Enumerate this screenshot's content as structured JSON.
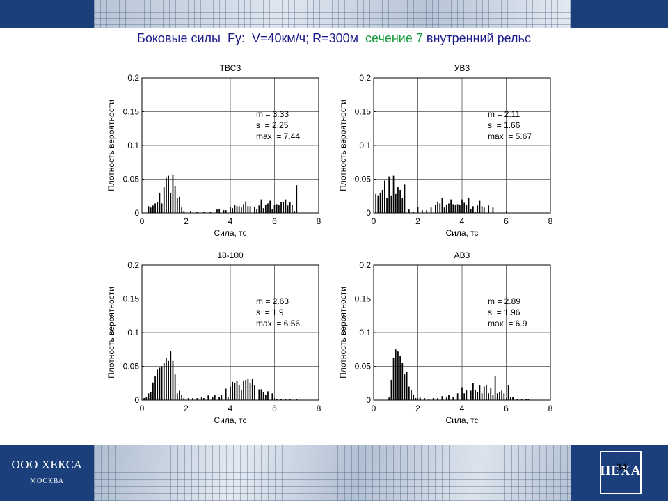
{
  "header": {
    "title_part1": "Боковые силы  Fy:  V=40км/ч; R=300м  ",
    "title_part2": "сечение 7",
    "title_part3": " внутренний рельс",
    "color_dark": "#1b3f7a",
    "color_title": "#1c1c8c",
    "color_green": "#159a3a"
  },
  "footer": {
    "company": "ООО ХЕКСА",
    "city": "МОСКВА",
    "logo_text": "HEXA",
    "page_number": "34"
  },
  "chart_data": [
    {
      "type": "bar",
      "title": "ТВСЗ",
      "xlabel": "Сила, тс",
      "ylabel": "Плотность вероятности",
      "xlim": [
        0,
        8
      ],
      "ylim": [
        0,
        0.2
      ],
      "xticks": [
        0,
        2,
        4,
        6,
        8
      ],
      "yticks": [
        0,
        0.05,
        0.1,
        0.15,
        0.2
      ],
      "ytick_labels": [
        "0",
        "0.05",
        "0.1",
        "0.15",
        "0.2"
      ],
      "grid": true,
      "stats": [
        "m = 3.33",
        "s  = 2.25",
        "max  = 7.44"
      ],
      "x": [
        0.3,
        0.4,
        0.5,
        0.6,
        0.7,
        0.8,
        0.9,
        1.0,
        1.1,
        1.2,
        1.3,
        1.4,
        1.5,
        1.6,
        1.7,
        1.8,
        1.9,
        2.2,
        2.5,
        2.8,
        3.1,
        3.4,
        3.5,
        3.7,
        3.8,
        4.0,
        4.1,
        4.2,
        4.3,
        4.4,
        4.5,
        4.6,
        4.7,
        4.8,
        4.9,
        5.1,
        5.2,
        5.3,
        5.4,
        5.5,
        5.6,
        5.7,
        5.8,
        5.9,
        6.0,
        6.1,
        6.2,
        6.3,
        6.4,
        6.5,
        6.6,
        6.7,
        6.8,
        6.9,
        7.0
      ],
      "values": [
        0.01,
        0.008,
        0.011,
        0.014,
        0.016,
        0.03,
        0.014,
        0.038,
        0.052,
        0.055,
        0.03,
        0.057,
        0.04,
        0.022,
        0.024,
        0.008,
        0.003,
        0.003,
        0.002,
        0.002,
        0.002,
        0.005,
        0.006,
        0.004,
        0.004,
        0.009,
        0.007,
        0.012,
        0.01,
        0.01,
        0.008,
        0.013,
        0.017,
        0.01,
        0.01,
        0.009,
        0.006,
        0.011,
        0.02,
        0.007,
        0.012,
        0.014,
        0.018,
        0.006,
        0.012,
        0.013,
        0.012,
        0.016,
        0.016,
        0.02,
        0.011,
        0.016,
        0.012,
        0.003,
        0.041
      ]
    },
    {
      "type": "bar",
      "title": "УВЗ",
      "xlabel": "Сила, тс",
      "ylabel": "Плотность вероятности",
      "xlim": [
        0,
        8
      ],
      "ylim": [
        0,
        0.2
      ],
      "xticks": [
        0,
        2,
        4,
        6,
        8
      ],
      "yticks": [
        0,
        0.05,
        0.1,
        0.15,
        0.2
      ],
      "ytick_labels": [
        "0",
        "0.05",
        "0.1",
        "0.15",
        "0.2"
      ],
      "grid": true,
      "stats": [
        "m = 2.11",
        "s  = 1.66",
        "max  = 5.67"
      ],
      "x": [
        0.1,
        0.2,
        0.3,
        0.4,
        0.5,
        0.6,
        0.7,
        0.8,
        0.9,
        1.0,
        1.1,
        1.2,
        1.3,
        1.4,
        1.6,
        1.8,
        2.0,
        2.2,
        2.4,
        2.6,
        2.8,
        2.9,
        3.0,
        3.1,
        3.2,
        3.3,
        3.4,
        3.5,
        3.6,
        3.7,
        3.8,
        3.9,
        4.0,
        4.1,
        4.2,
        4.3,
        4.4,
        4.5,
        4.6,
        4.7,
        4.8,
        4.9,
        5.0,
        5.2,
        5.4
      ],
      "values": [
        0.028,
        0.026,
        0.03,
        0.034,
        0.048,
        0.022,
        0.054,
        0.026,
        0.055,
        0.028,
        0.038,
        0.034,
        0.022,
        0.042,
        0.005,
        0.002,
        0.009,
        0.004,
        0.004,
        0.008,
        0.012,
        0.016,
        0.014,
        0.022,
        0.008,
        0.012,
        0.014,
        0.02,
        0.013,
        0.012,
        0.013,
        0.012,
        0.02,
        0.015,
        0.012,
        0.022,
        0.006,
        0.01,
        0.002,
        0.011,
        0.018,
        0.01,
        0.008,
        0.011,
        0.008
      ]
    },
    {
      "type": "bar",
      "title": "18-100",
      "xlabel": "Сила, тс",
      "ylabel": "Плотность вероятности",
      "xlim": [
        0,
        8
      ],
      "ylim": [
        0,
        0.2
      ],
      "xticks": [
        0,
        2,
        4,
        6,
        8
      ],
      "yticks": [
        0,
        0.05,
        0.1,
        0.15,
        0.2
      ],
      "ytick_labels": [
        "0",
        "0.05",
        "0.1",
        "0.15",
        "0.2"
      ],
      "grid": true,
      "stats": [
        "m = 2.63",
        "s  = 1.9",
        "max  = 6.56"
      ],
      "x": [
        0.1,
        0.2,
        0.3,
        0.4,
        0.5,
        0.6,
        0.7,
        0.8,
        0.9,
        1.0,
        1.1,
        1.2,
        1.3,
        1.4,
        1.5,
        1.6,
        1.7,
        1.8,
        1.9,
        2.1,
        2.3,
        2.5,
        2.7,
        2.8,
        3.0,
        3.2,
        3.3,
        3.5,
        3.6,
        3.8,
        3.9,
        4.0,
        4.1,
        4.2,
        4.3,
        4.4,
        4.5,
        4.6,
        4.7,
        4.8,
        4.9,
        5.0,
        5.1,
        5.3,
        5.4,
        5.5,
        5.6,
        5.7,
        5.9,
        6.1,
        6.3,
        6.5,
        6.7,
        7.0
      ],
      "values": [
        0.003,
        0.005,
        0.01,
        0.012,
        0.026,
        0.035,
        0.045,
        0.048,
        0.05,
        0.055,
        0.062,
        0.058,
        0.072,
        0.058,
        0.038,
        0.01,
        0.014,
        0.008,
        0.003,
        0.003,
        0.003,
        0.003,
        0.004,
        0.003,
        0.007,
        0.005,
        0.008,
        0.005,
        0.008,
        0.017,
        0.005,
        0.02,
        0.027,
        0.025,
        0.028,
        0.022,
        0.015,
        0.028,
        0.03,
        0.032,
        0.025,
        0.032,
        0.022,
        0.016,
        0.016,
        0.012,
        0.008,
        0.013,
        0.01,
        0.002,
        0.002,
        0.002,
        0.002,
        0.002
      ]
    },
    {
      "type": "bar",
      "title": "АВЗ",
      "xlabel": "Сила, тс",
      "ylabel": "Плотность вероятности",
      "xlim": [
        0,
        8
      ],
      "ylim": [
        0,
        0.2
      ],
      "xticks": [
        0,
        2,
        4,
        6,
        8
      ],
      "yticks": [
        0,
        0.05,
        0.1,
        0.15,
        0.2
      ],
      "ytick_labels": [
        "0",
        "0.05",
        "0.1",
        "0.15",
        "0.2"
      ],
      "grid": true,
      "stats": [
        "m = 2.89",
        "s  = 1.96",
        "max  = 6.9"
      ],
      "x": [
        0.7,
        0.8,
        0.9,
        1.0,
        1.1,
        1.2,
        1.3,
        1.4,
        1.5,
        1.6,
        1.7,
        1.8,
        1.9,
        2.1,
        2.3,
        2.5,
        2.7,
        2.9,
        3.1,
        3.3,
        3.4,
        3.6,
        3.8,
        4.0,
        4.1,
        4.2,
        4.4,
        4.5,
        4.6,
        4.7,
        4.8,
        4.9,
        5.0,
        5.1,
        5.2,
        5.3,
        5.4,
        5.5,
        5.6,
        5.7,
        5.8,
        5.9,
        6.1,
        6.2,
        6.3,
        6.5,
        6.7,
        6.9,
        7.0
      ],
      "values": [
        0.004,
        0.03,
        0.062,
        0.075,
        0.072,
        0.065,
        0.055,
        0.038,
        0.042,
        0.02,
        0.015,
        0.008,
        0.003,
        0.005,
        0.003,
        0.002,
        0.003,
        0.003,
        0.006,
        0.004,
        0.008,
        0.005,
        0.01,
        0.019,
        0.01,
        0.015,
        0.014,
        0.025,
        0.015,
        0.012,
        0.022,
        0.01,
        0.02,
        0.022,
        0.01,
        0.018,
        0.008,
        0.035,
        0.01,
        0.012,
        0.014,
        0.01,
        0.022,
        0.005,
        0.005,
        0.002,
        0.002,
        0.002,
        0.002
      ]
    }
  ]
}
